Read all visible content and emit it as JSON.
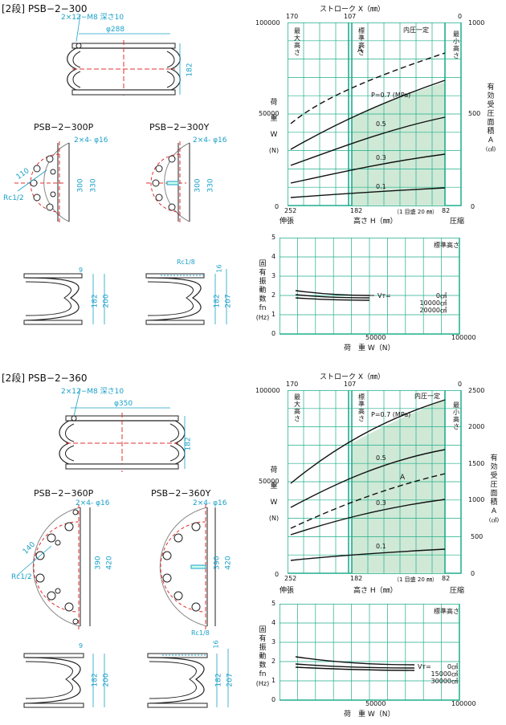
{
  "sections": [
    {
      "title": "[2段] PSB−2−300",
      "model_p": "PSB−2−300P",
      "model_y": "PSB−2−300Y",
      "dims": {
        "bolts": "2×12−M8 深さ10",
        "diameter": "φ288",
        "height": "182",
        "ports_p": "2×4- φ16",
        "ports_y": "2×4- φ16",
        "pcd": "110",
        "rc_p": "Rc1/2",
        "rc_y": "Rc1/8",
        "sq_in": "300",
        "sq_out": "330",
        "side_t": "9",
        "side_h": "182",
        "side_total_p": "200",
        "side_total_y": "207",
        "side_y_top": "16"
      },
      "load_chart": {
        "stroke_label": "ストローク X（㎜）",
        "stroke_ticks": [
          "170",
          "107",
          "0"
        ],
        "y_ticks": [
          "100000",
          "50000",
          "0"
        ],
        "right_ticks": [
          "1000",
          "500",
          "0"
        ],
        "x_ticks": [
          "252",
          "182",
          "82"
        ],
        "x_note": "（1 目盛 20 ㎜）",
        "x_label": "高さ H（㎜）",
        "left_x": "伸張",
        "right_x": "圧縮",
        "y_label": [
          "荷",
          "重",
          "W",
          "(N)"
        ],
        "right_label": [
          "有",
          "効",
          "受",
          "圧",
          "面",
          "積",
          "A",
          "(㎠)"
        ],
        "max_h": [
          "最",
          "大",
          "高",
          "さ"
        ],
        "std_h": [
          "標",
          "準",
          "高",
          "さ"
        ],
        "min_h": [
          "最",
          "小",
          "高",
          "さ"
        ],
        "internal": "内圧一定",
        "curve_labels": [
          "A",
          "P=0.7 (MPa)",
          "0.5",
          "0.3",
          "0.1"
        ]
      },
      "freq_chart": {
        "std_label": "標準高さ",
        "y_ticks": [
          "5",
          "4",
          "3",
          "2",
          "1",
          "0"
        ],
        "x_ticks": [
          "0",
          "50000",
          "100000"
        ],
        "x_label": "荷　重 W（N）",
        "y_label": [
          "固",
          "有",
          "振",
          "動",
          "数",
          "fn",
          "(Hz)"
        ],
        "vt_label": "Vт=",
        "legend": [
          "0㎤",
          "10000㎤",
          "20000㎤"
        ]
      }
    },
    {
      "title": "[2段] PSB−2−360",
      "model_p": "PSB−2−360P",
      "model_y": "PSB−2−360Y",
      "dims": {
        "bolts": "2×12−M8 深さ10",
        "diameter": "φ350",
        "height": "182",
        "ports_p": "2×4- φ16",
        "ports_y": "2×4- φ16",
        "pcd": "140",
        "rc_p": "Rc1/2",
        "rc_y": "Rc1/8",
        "sq_in": "390",
        "sq_out": "420",
        "side_t": "9",
        "side_h": "182",
        "side_total_p": "200",
        "side_total_y": "207",
        "side_y_top": "16"
      },
      "load_chart": {
        "stroke_label": "ストローク X（㎜）",
        "stroke_ticks": [
          "170",
          "107",
          "0"
        ],
        "y_ticks": [
          "100000",
          "50000",
          "0"
        ],
        "right_ticks": [
          "2500",
          "2000",
          "1500",
          "1000",
          "500",
          "0"
        ],
        "x_ticks": [
          "252",
          "182",
          "82"
        ],
        "x_note": "（1 目盛 20 ㎜）",
        "x_label": "高さ H（㎜）",
        "left_x": "伸張",
        "right_x": "圧縮",
        "y_label": [
          "荷",
          "重",
          "W",
          "(N)"
        ],
        "right_label": [
          "有",
          "効",
          "受",
          "圧",
          "面",
          "積",
          "A",
          "(㎠)"
        ],
        "max_h": [
          "最",
          "大",
          "高",
          "さ"
        ],
        "std_h": [
          "標",
          "準",
          "高",
          "さ"
        ],
        "min_h": [
          "最",
          "小",
          "高",
          "さ"
        ],
        "internal": "内圧一定",
        "curve_labels": [
          "P=0.7 (MPa)",
          "0.5",
          "A",
          "0.3",
          "0.1"
        ]
      },
      "freq_chart": {
        "std_label": "標準高さ",
        "y_ticks": [
          "5",
          "4",
          "3",
          "2",
          "1",
          "0"
        ],
        "x_ticks": [
          "0",
          "50000",
          "100000"
        ],
        "x_label": "荷　重 W（N）",
        "y_label": [
          "固",
          "有",
          "振",
          "動",
          "数",
          "fn",
          "(Hz)"
        ],
        "vt_label": "Vт=",
        "legend": [
          "0㎤",
          "15000㎤",
          "30000㎤"
        ]
      }
    }
  ],
  "colors": {
    "grid": "#1fae8a",
    "fill": "#cfe9d6",
    "dim": "#1aa0c8",
    "redline": "#e03030"
  }
}
